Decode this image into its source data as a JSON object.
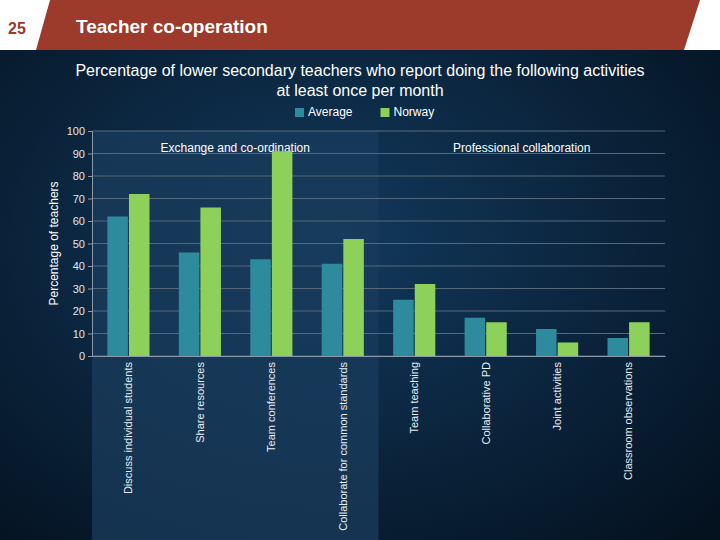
{
  "slide": {
    "number": "25",
    "heading": "Teacher co-operation"
  },
  "chart_data": {
    "type": "bar",
    "title": "Percentage of lower secondary teachers who report doing the following activities at least once per month",
    "ylabel": "Percentage of teachers",
    "categories": [
      "Discuss individual students",
      "Share resources",
      "Team conferences",
      "Collaborate for common standards",
      "Team teaching",
      "Collaborative PD",
      "Joint activities",
      "Classroom observations"
    ],
    "series": [
      {
        "name": "Average",
        "color": "#2e8b9e",
        "values": [
          62,
          46,
          43,
          41,
          25,
          17,
          12,
          8
        ]
      },
      {
        "name": "Norway",
        "color": "#8ed15a",
        "values": [
          72,
          66,
          91,
          52,
          32,
          15,
          6,
          15
        ]
      }
    ],
    "groups": [
      {
        "label": "Exchange and co-ordination",
        "start": 0,
        "end": 3
      },
      {
        "label": "Professional collaboration",
        "start": 4,
        "end": 7
      }
    ],
    "ylim": [
      0,
      100
    ],
    "yticks": [
      0,
      10,
      20,
      30,
      40,
      50,
      60,
      70,
      80,
      90,
      100
    ],
    "grid": true,
    "legend": "top"
  }
}
